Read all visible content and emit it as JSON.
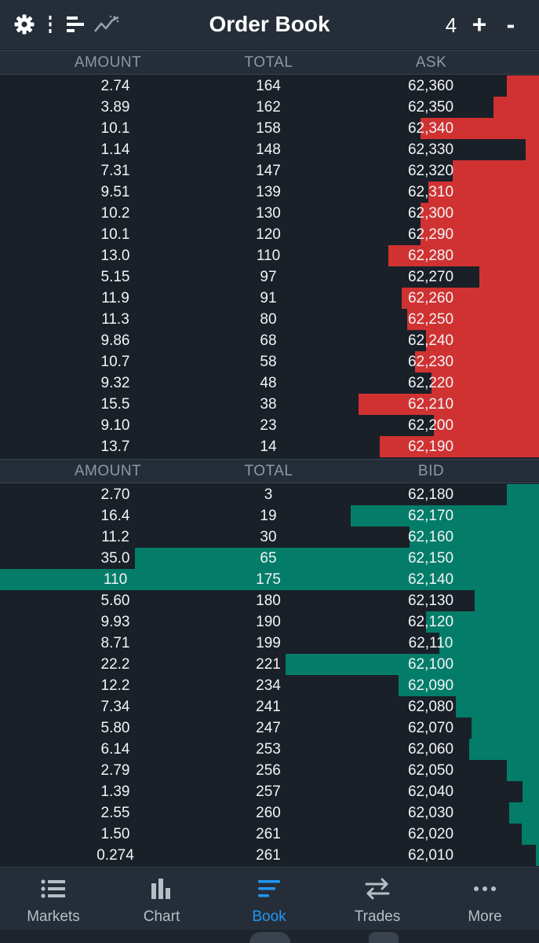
{
  "header": {
    "title": "Order Book",
    "depth_value": "4",
    "icons": [
      "gear-icon",
      "vertical-dots-icon",
      "bars-align-left-icon",
      "sparkline-icon"
    ],
    "increase_label": "+",
    "decrease_label": "-"
  },
  "ask_header": {
    "amount": "AMOUNT",
    "total": "TOTAL",
    "side": "ASK"
  },
  "bid_header": {
    "amount": "AMOUNT",
    "total": "TOTAL",
    "side": "BID"
  },
  "asks": [
    {
      "amount": "2.74",
      "total": "164",
      "price": "62,360",
      "depth": 0.06
    },
    {
      "amount": "3.89",
      "total": "162",
      "price": "62,350",
      "depth": 0.085
    },
    {
      "amount": "10.1",
      "total": "158",
      "price": "62,340",
      "depth": 0.22
    },
    {
      "amount": "1.14",
      "total": "148",
      "price": "62,330",
      "depth": 0.025
    },
    {
      "amount": "7.31",
      "total": "147",
      "price": "62,320",
      "depth": 0.16
    },
    {
      "amount": "9.51",
      "total": "139",
      "price": "62,310",
      "depth": 0.205
    },
    {
      "amount": "10.2",
      "total": "130",
      "price": "62,300",
      "depth": 0.22
    },
    {
      "amount": "10.1",
      "total": "120",
      "price": "62,290",
      "depth": 0.22
    },
    {
      "amount": "13.0",
      "total": "110",
      "price": "62,280",
      "depth": 0.28
    },
    {
      "amount": "5.15",
      "total": "97",
      "price": "62,270",
      "depth": 0.11
    },
    {
      "amount": "11.9",
      "total": "91",
      "price": "62,260",
      "depth": 0.255
    },
    {
      "amount": "11.3",
      "total": "80",
      "price": "62,250",
      "depth": 0.245
    },
    {
      "amount": "9.86",
      "total": "68",
      "price": "62,240",
      "depth": 0.21
    },
    {
      "amount": "10.7",
      "total": "58",
      "price": "62,230",
      "depth": 0.23
    },
    {
      "amount": "9.32",
      "total": "48",
      "price": "62,220",
      "depth": 0.2
    },
    {
      "amount": "15.5",
      "total": "38",
      "price": "62,210",
      "depth": 0.335
    },
    {
      "amount": "9.10",
      "total": "23",
      "price": "62,200",
      "depth": 0.195
    },
    {
      "amount": "13.7",
      "total": "14",
      "price": "62,190",
      "depth": 0.295
    }
  ],
  "bids": [
    {
      "amount": "2.70",
      "total": "3",
      "price": "62,180",
      "depth": 0.06
    },
    {
      "amount": "16.4",
      "total": "19",
      "price": "62,170",
      "depth": 0.35
    },
    {
      "amount": "11.2",
      "total": "30",
      "price": "62,160",
      "depth": 0.24
    },
    {
      "amount": "35.0",
      "total": "65",
      "price": "62,150",
      "depth": 0.75
    },
    {
      "amount": "110",
      "total": "175",
      "price": "62,140",
      "depth": 1.0
    },
    {
      "amount": "5.60",
      "total": "180",
      "price": "62,130",
      "depth": 0.12
    },
    {
      "amount": "9.93",
      "total": "190",
      "price": "62,120",
      "depth": 0.21
    },
    {
      "amount": "8.71",
      "total": "199",
      "price": "62,110",
      "depth": 0.185
    },
    {
      "amount": "22.2",
      "total": "221",
      "price": "62,100",
      "depth": 0.47
    },
    {
      "amount": "12.2",
      "total": "234",
      "price": "62,090",
      "depth": 0.26
    },
    {
      "amount": "7.34",
      "total": "241",
      "price": "62,080",
      "depth": 0.155
    },
    {
      "amount": "5.80",
      "total": "247",
      "price": "62,070",
      "depth": 0.125
    },
    {
      "amount": "6.14",
      "total": "253",
      "price": "62,060",
      "depth": 0.13
    },
    {
      "amount": "2.79",
      "total": "256",
      "price": "62,050",
      "depth": 0.06
    },
    {
      "amount": "1.39",
      "total": "257",
      "price": "62,040",
      "depth": 0.03
    },
    {
      "amount": "2.55",
      "total": "260",
      "price": "62,030",
      "depth": 0.055
    },
    {
      "amount": "1.50",
      "total": "261",
      "price": "62,020",
      "depth": 0.032
    },
    {
      "amount": "0.274",
      "total": "261",
      "price": "62,010",
      "depth": 0.006
    }
  ],
  "colors": {
    "ask_bar": "#d03232",
    "bid_bar": "#037d6a",
    "active_tab": "#2196f3",
    "background": "#1a2028"
  },
  "tabs": [
    {
      "label": "Markets",
      "icon": "list-icon",
      "active": false
    },
    {
      "label": "Chart",
      "icon": "bar-chart-icon",
      "active": false
    },
    {
      "label": "Book",
      "icon": "book-lines-icon",
      "active": true
    },
    {
      "label": "Trades",
      "icon": "swap-arrows-icon",
      "active": false
    },
    {
      "label": "More",
      "icon": "more-dots-icon",
      "active": false
    }
  ]
}
